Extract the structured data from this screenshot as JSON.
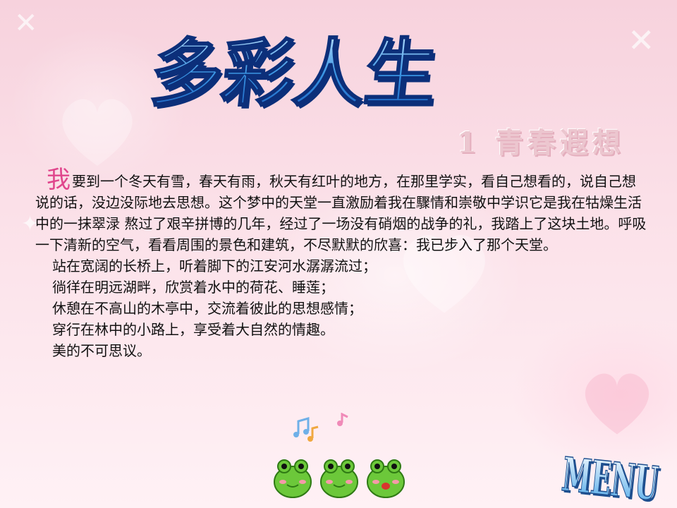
{
  "slide": {
    "title": "多彩人生",
    "subtitle": "1  青春遐想",
    "paragraph": {
      "first_char": "我",
      "rest": "要到一个冬天有雪，春天有雨，秋天有红叶的地方，在那里学实，看自己想看的，说自己想说的话，没边没际地去思想。这个梦中的天堂一直激励着我在驟情和崇敬中学识它是我在牯燥生活中的一抹翠渌 熬过了艰辛拼博的几年，经过了一场没有硝烟的战争的礼，我踏上了这块土地。呼吸一下清新的空气，看看周围的景色和建筑，不尽默默的欣喜：我已步入了那个天堂。"
    },
    "lines": [
      "站在宽阔的长桥上，听着脚下的江安河水潺潺流过；",
      "徜徉在明远湖畔，欣赏着水中的荷花、睡莲；",
      "休憩在不高山的木亭中，交流着彼此的思想感情；",
      "穿行在林中的小路上，享受着大自然的情趣。",
      "美的不可思议。"
    ],
    "menu_button": "MENU"
  },
  "colors": {
    "title_blue": "#2f8fe0",
    "title_outline": "#0c2f7a",
    "first_char_pink": "#e0458c",
    "subtitle_pink": "#ecc6cf",
    "menu_blue": "#4aa6e8"
  },
  "icons": [
    "music-note-icon",
    "frog-icon"
  ]
}
